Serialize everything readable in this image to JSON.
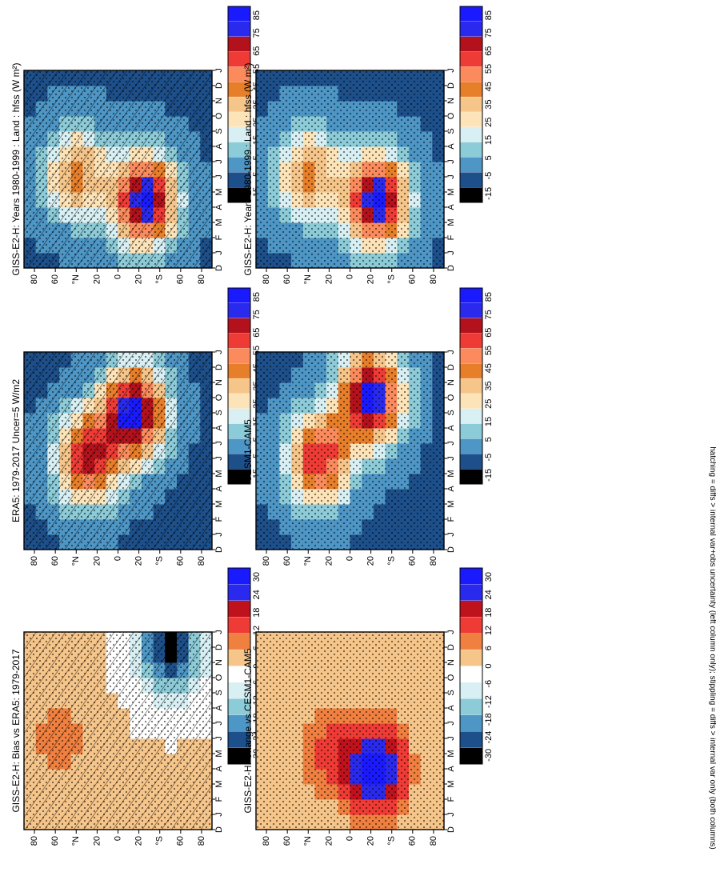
{
  "figure": {
    "footnote": "hatching = diffs > internal var+obs uncertainty (left column only); stippling = diffs > internal var only (both columns)"
  },
  "chart_data": [
    {
      "type": "heatmap",
      "title": "GISS-E2-H: Years 1980-1999 : Land : hfss (W m²)",
      "x": [
        "D",
        "J",
        "F",
        "M",
        "A",
        "M",
        "J",
        "J",
        "A",
        "S",
        "O",
        "N",
        "D",
        "J"
      ],
      "y_ticks": [
        "80",
        "60",
        "°N",
        "20",
        "0",
        "20",
        "°S",
        "60",
        "80"
      ],
      "colorbar": [
        "85",
        "75",
        "65",
        "55",
        "45",
        "35",
        "25",
        "15",
        "5",
        "-5",
        "-15"
      ],
      "scale": "abs",
      "stipple": true,
      "hatch": true,
      "features": [
        {
          "month": 6.2,
          "lat": 40,
          "value": 45
        },
        {
          "month": 4.5,
          "lat": -25,
          "value": 85
        }
      ]
    },
    {
      "type": "heatmap",
      "title": "GISS-E2-H: Years 1980-1999 : Land : hfss (W m²)",
      "x": [
        "D",
        "J",
        "F",
        "M",
        "A",
        "M",
        "J",
        "J",
        "A",
        "S",
        "O",
        "N",
        "D",
        "J"
      ],
      "y_ticks": [
        "80",
        "60",
        "°N",
        "20",
        "0",
        "20",
        "°S",
        "60",
        "80"
      ],
      "colorbar": [
        "85",
        "75",
        "65",
        "55",
        "45",
        "35",
        "25",
        "15",
        "5",
        "-5",
        "-15"
      ],
      "scale": "abs",
      "stipple": true,
      "hatch": false,
      "features": [
        {
          "month": 6.2,
          "lat": 40,
          "value": 45
        },
        {
          "month": 4.5,
          "lat": -25,
          "value": 85
        }
      ]
    },
    {
      "type": "heatmap",
      "title": "ERA5: 1979-2017 Uncer=5 W/m2",
      "x": [
        "D",
        "J",
        "F",
        "M",
        "A",
        "M",
        "J",
        "J",
        "A",
        "S",
        "O",
        "N",
        "D",
        "J"
      ],
      "y_ticks": [
        "80",
        "60",
        "°N",
        "20",
        "0",
        "20",
        "°S",
        "60",
        "80"
      ],
      "colorbar": [
        "85",
        "75",
        "65",
        "55",
        "45",
        "35",
        "25",
        "15",
        "5",
        "-5",
        "-15"
      ],
      "scale": "abs",
      "stipple": true,
      "hatch": true,
      "features": [
        {
          "month": 6,
          "lat": 30,
          "value": 65
        },
        {
          "month": 9,
          "lat": -15,
          "value": 85
        }
      ]
    },
    {
      "type": "heatmap",
      "title": "CESM1-CAM5",
      "x": [
        "D",
        "J",
        "F",
        "M",
        "A",
        "M",
        "J",
        "J",
        "A",
        "S",
        "O",
        "N",
        "D",
        "J"
      ],
      "y_ticks": [
        "80",
        "60",
        "°N",
        "20",
        "0",
        "20",
        "°S",
        "60",
        "80"
      ],
      "colorbar": [
        "85",
        "75",
        "65",
        "55",
        "45",
        "35",
        "25",
        "15",
        "5",
        "-5",
        "-15"
      ],
      "scale": "abs",
      "stipple": true,
      "hatch": false,
      "features": [
        {
          "month": 6,
          "lat": 30,
          "value": 65
        },
        {
          "month": 10,
          "lat": -20,
          "value": 85
        }
      ]
    },
    {
      "type": "heatmap",
      "title": "GISS-E2-H: Bias vs ERA5: 1979-2017",
      "x": [
        "D",
        "J",
        "F",
        "M",
        "A",
        "M",
        "J",
        "J",
        "A",
        "S",
        "O",
        "N",
        "D",
        "J"
      ],
      "y_ticks": [
        "80",
        "60",
        "°N",
        "20",
        "0",
        "20",
        "°S",
        "60",
        "80"
      ],
      "colorbar": [
        "30",
        "24",
        "18",
        "12",
        "6",
        "0",
        "-6",
        "-12",
        "-18",
        "-24",
        "-30"
      ],
      "scale": "diff",
      "stipple": true,
      "hatch": true,
      "features": [
        {
          "month": 6,
          "lat": 55,
          "value": 8
        },
        {
          "month": 12,
          "lat": -50,
          "value": -30
        }
      ]
    },
    {
      "type": "heatmap",
      "title": "GISS-E2-H: Change vs CESM1-CAM5",
      "x": [
        "D",
        "J",
        "F",
        "M",
        "A",
        "M",
        "J",
        "J",
        "A",
        "S",
        "O",
        "N",
        "D",
        "J"
      ],
      "y_ticks": [
        "80",
        "60",
        "°N",
        "20",
        "0",
        "20",
        "°S",
        "60",
        "80"
      ],
      "colorbar": [
        "30",
        "24",
        "18",
        "12",
        "6",
        "0",
        "-6",
        "-12",
        "-18",
        "-24",
        "-30"
      ],
      "scale": "diff",
      "stipple": true,
      "hatch": false,
      "features": [
        {
          "month": 5,
          "lat": 20,
          "value": 12
        },
        {
          "month": 4,
          "lat": -25,
          "value": 30
        }
      ]
    }
  ]
}
